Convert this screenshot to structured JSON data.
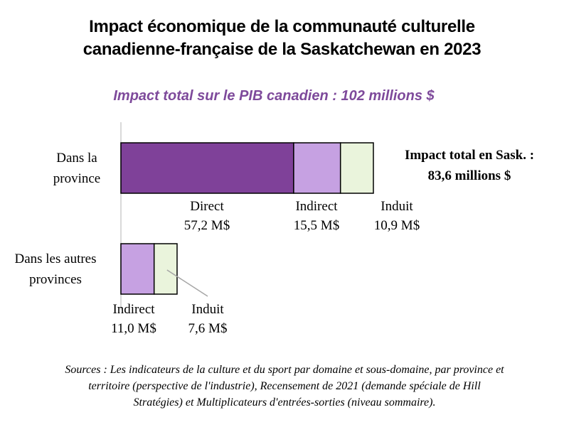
{
  "chart_data": {
    "type": "bar",
    "orientation": "horizontal",
    "stacked": true,
    "title_line1": "Impact économique de la communauté culturelle",
    "title_line2": "canadienne-française de la Saskatchewan en 2023",
    "subtitle": "Impact total sur le PIB canadien : 102 millions $",
    "categories": [
      {
        "line1": "Dans la",
        "line2": "province"
      },
      {
        "line1": "Dans les autres",
        "line2": "provinces"
      }
    ],
    "series": [
      {
        "name": "Direct",
        "color": "#7f4199",
        "values": [
          57.2,
          0
        ]
      },
      {
        "name": "Indirect",
        "color": "#c6a1e2",
        "values": [
          15.5,
          11.0
        ]
      },
      {
        "name": "Induit",
        "color": "#eaf4dc",
        "values": [
          10.9,
          7.6
        ]
      }
    ],
    "data_labels": [
      [
        {
          "name": "Direct",
          "value": "57,2 M$"
        },
        {
          "name": "Indirect",
          "value": "15,5 M$"
        },
        {
          "name": "Induit",
          "value": "10,9 M$"
        }
      ],
      [
        {
          "name": "Indirect",
          "value": "11,0 M$"
        },
        {
          "name": "Induit",
          "value": "7,6 M$"
        }
      ]
    ],
    "annotation_line1": "Impact total en Sask. :",
    "annotation_line2": "83,6 millions $",
    "source_line1": "Sources : Les indicateurs de la culture et du sport  par domaine et sous-domaine, par province et",
    "source_line2": "territoire (perspective de l'industrie), Recensement de 2021 (demande spéciale de Hill",
    "source_line3": "Stratégies) et Multiplicateurs d'entrées-sorties (niveau sommaire).",
    "xlim": [
      0,
      83.6
    ],
    "grid": false,
    "legend": "none"
  }
}
